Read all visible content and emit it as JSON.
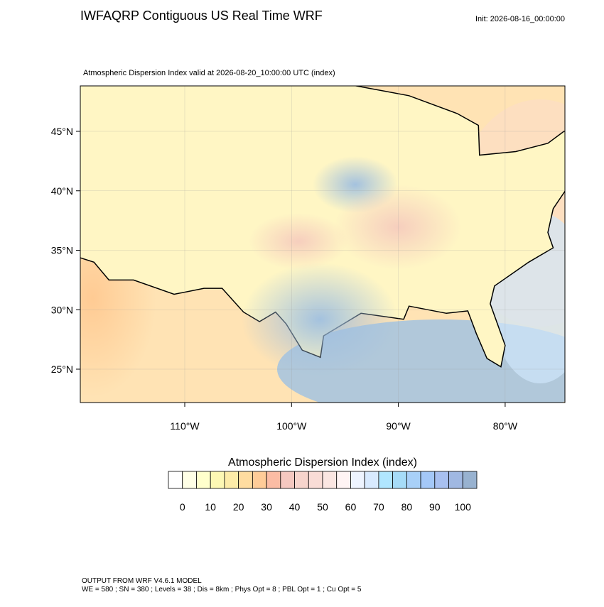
{
  "header": {
    "title": "IWFAQRP Contiguous US Real Time WRF",
    "init": "Init: 2026-08-16_00:00:00"
  },
  "map": {
    "subtitle": "Atmospheric Dispersion Index valid at 2026-08-20_10:00:00 UTC   (index)",
    "lat_ticks": [
      {
        "value": 45,
        "label": "45°N"
      },
      {
        "value": 40,
        "label": "40°N"
      },
      {
        "value": 35,
        "label": "35°N"
      },
      {
        "value": 30,
        "label": "30°N"
      },
      {
        "value": 25,
        "label": "25°N"
      }
    ],
    "lon_ticks": [
      {
        "value": -110,
        "label": "110°W"
      },
      {
        "value": -100,
        "label": "100°W"
      },
      {
        "value": -90,
        "label": "90°W"
      },
      {
        "value": -80,
        "label": "80°W"
      }
    ]
  },
  "colorbar": {
    "title": "Atmospheric Dispersion Index  (index)",
    "labels": [
      0,
      10,
      20,
      30,
      40,
      50,
      60,
      70,
      80,
      90,
      100
    ],
    "colors": [
      "#ffffff",
      "#ffffe6",
      "#ffffcc",
      "#fdf8b4",
      "#fdeca8",
      "#ffdca0",
      "#ffcc98",
      "#fbbca4",
      "#f5c8c0",
      "#f7d4cc",
      "#f9dcd6",
      "#fbe6e2",
      "#fff4f4",
      "#eef4ff",
      "#d8eaff",
      "#b0e6ff",
      "#a6dcf8",
      "#a8d0f8",
      "#a4c8f8",
      "#a8c0f0",
      "#a0b8e2",
      "#98b2d0"
    ]
  },
  "footer": {
    "lines": [
      "OUTPUT FROM WRF V4.6.1 MODEL",
      "WE = 580 ; SN = 380 ; Levels = 38 ; Dis = 8km ; Phys Opt = 8 ; PBL Opt = 1 ; Cu Opt = 5"
    ]
  }
}
